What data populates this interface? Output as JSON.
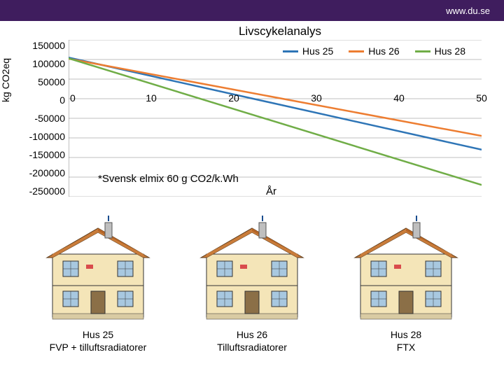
{
  "header": {
    "url": "www.du.se",
    "bg": "#3f1d5e",
    "textColor": "#ffffff"
  },
  "chart": {
    "title": "Livscykelanalys",
    "ylabel": "kg CO2eq",
    "xlabel": "År",
    "annotation": "*Svensk elmix 60 g CO2/k.Wh",
    "y_ticks": [
      "150000",
      "100000",
      "50000",
      "0",
      "-50000",
      "-100000",
      "-150000",
      "-200000",
      "-250000"
    ],
    "ylim": [
      -250000,
      150000
    ],
    "x_ticks": [
      0,
      10,
      20,
      30,
      40,
      50
    ],
    "xlim": [
      0,
      50
    ],
    "grid_color": "#bfbfbf",
    "axis_color": "#808080",
    "series": [
      {
        "name": "Hus 25",
        "color": "#2e75b6",
        "x0": 0,
        "y0": 105000,
        "x1": 50,
        "y1": -130000
      },
      {
        "name": "Hus 26",
        "color": "#ed7d31",
        "x0": 0,
        "y0": 102000,
        "x1": 50,
        "y1": -95000
      },
      {
        "name": "Hus 28",
        "color": "#70ad47",
        "x0": 0,
        "y0": 103000,
        "x1": 50,
        "y1": -220000
      }
    ]
  },
  "houses": [
    {
      "key": "h25",
      "title": "Hus 25",
      "subtitle": "FVP + tilluftsradiatorer"
    },
    {
      "key": "h26",
      "title": "Hus 26",
      "subtitle": "Tilluftsradiatorer"
    },
    {
      "key": "h28",
      "title": "Hus 28",
      "subtitle": "FTX"
    }
  ],
  "house_colors": {
    "wall": "#f4e5b8",
    "roof": "#c97c3a",
    "window": "#a8c8e0",
    "structure": "#8b6f47",
    "chimney": "#bfbfbf",
    "ground": "#d9cba3",
    "interior": "#efe8d0"
  }
}
